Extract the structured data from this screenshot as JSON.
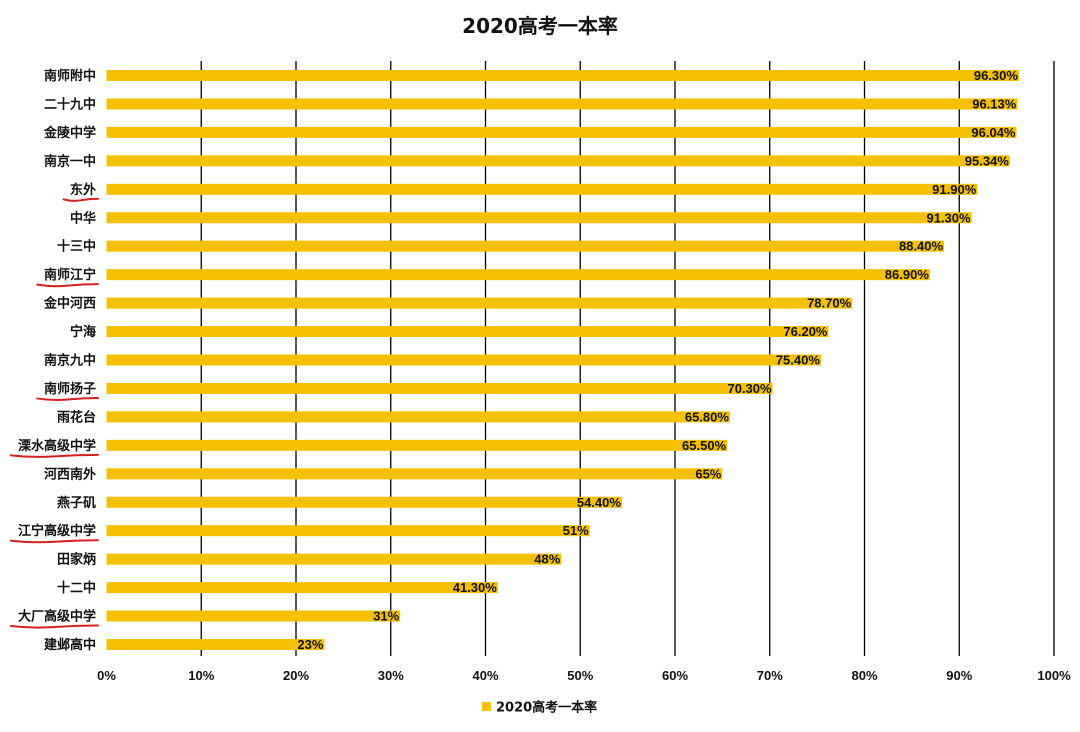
{
  "chart_data": {
    "type": "bar",
    "orientation": "horizontal",
    "title": "2020高考一本率",
    "categories": [
      "南师附中",
      "二十九中",
      "金陵中学",
      "南京一中",
      "东外",
      "中华",
      "十三中",
      "南师江宁",
      "金中河西",
      "宁海",
      "南京九中",
      "南师扬子",
      "雨花台",
      "溧水高级中学",
      "河西南外",
      "燕子矶",
      "江宁高级中学",
      "田家炳",
      "十二中",
      "大厂高级中学",
      "建邺高中"
    ],
    "series": [
      {
        "name": "2020高考一本率",
        "values": [
          96.3,
          96.13,
          96.04,
          95.34,
          91.9,
          91.3,
          88.4,
          86.9,
          78.7,
          76.2,
          75.4,
          70.3,
          65.8,
          65.5,
          65,
          54.4,
          51,
          48,
          41.3,
          31,
          23
        ],
        "data_labels": [
          "96.30%",
          "96.13%",
          "96.04%",
          "95.34%",
          "91.90%",
          "91.30%",
          "88.40%",
          "86.90%",
          "78.70%",
          "76.20%",
          "75.40%",
          "70.30%",
          "65.80%",
          "65.50%",
          "65%",
          "54.40%",
          "51%",
          "48%",
          "41.30%",
          "31%",
          "23%"
        ]
      }
    ],
    "xlim": [
      0,
      100
    ],
    "xticks": [
      0,
      10,
      20,
      30,
      40,
      50,
      60,
      70,
      80,
      90,
      100
    ],
    "xtick_labels": [
      "0%",
      "10%",
      "20%",
      "30%",
      "40%",
      "50%",
      "60%",
      "70%",
      "80%",
      "90%",
      "100%"
    ],
    "grid": "vertical",
    "legend": "bottom",
    "bar_color": "#f5c000",
    "annotation_color": "#d62020",
    "underlined_categories": [
      "东外",
      "南师江宁",
      "南师扬子",
      "溧水高级中学",
      "江宁高级中学",
      "大厂高级中学"
    ]
  }
}
